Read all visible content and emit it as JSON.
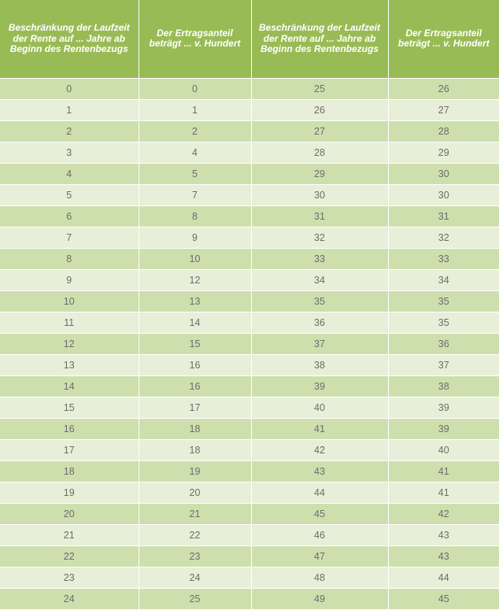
{
  "headers": [
    "Beschränkung der Laufzeit der Rente auf ... Jahre ab Beginn des Rentenbezugs",
    "Der Ertragsanteil beträgt ... v. Hundert",
    "Beschränkung der Laufzeit der Rente auf ... Jahre ab Beginn des Rentenbezugs",
    "Der Ertragsanteil beträgt ... v. Hundert"
  ],
  "rows": [
    [
      "0",
      "0",
      "25",
      "26"
    ],
    [
      "1",
      "1",
      "26",
      "27"
    ],
    [
      "2",
      "2",
      "27",
      "28"
    ],
    [
      "3",
      "4",
      "28",
      "29"
    ],
    [
      "4",
      "5",
      "29",
      "30"
    ],
    [
      "5",
      "7",
      "30",
      "30"
    ],
    [
      "6",
      "8",
      "31",
      "31"
    ],
    [
      "7",
      "9",
      "32",
      "32"
    ],
    [
      "8",
      "10",
      "33",
      "33"
    ],
    [
      "9",
      "12",
      "34",
      "34"
    ],
    [
      "10",
      "13",
      "35",
      "35"
    ],
    [
      "11",
      "14",
      "36",
      "35"
    ],
    [
      "12",
      "15",
      "37",
      "36"
    ],
    [
      "13",
      "16",
      "38",
      "37"
    ],
    [
      "14",
      "16",
      "39",
      "38"
    ],
    [
      "15",
      "17",
      "40",
      "39"
    ],
    [
      "16",
      "18",
      "41",
      "39"
    ],
    [
      "17",
      "18",
      "42",
      "40"
    ],
    [
      "18",
      "19",
      "43",
      "41"
    ],
    [
      "19",
      "20",
      "44",
      "41"
    ],
    [
      "20",
      "21",
      "45",
      "42"
    ],
    [
      "21",
      "22",
      "46",
      "43"
    ],
    [
      "22",
      "23",
      "47",
      "43"
    ],
    [
      "23",
      "24",
      "48",
      "44"
    ],
    [
      "24",
      "25",
      "49",
      "45"
    ]
  ]
}
